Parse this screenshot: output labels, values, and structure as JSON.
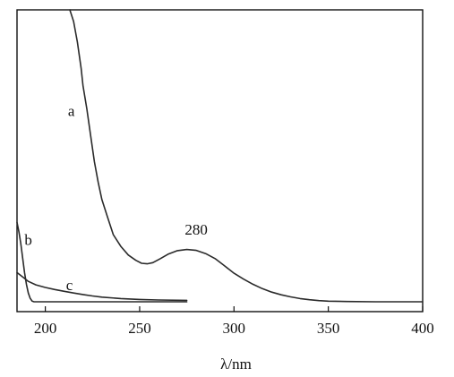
{
  "chart_data": {
    "type": "line",
    "title": "",
    "xlabel": "λ/nm",
    "ylabel": "",
    "xlim": [
      185,
      400
    ],
    "ylim": [
      0,
      1
    ],
    "x_ticks": [
      200,
      250,
      300,
      350,
      400
    ],
    "grid": false,
    "legend": "none",
    "series": [
      {
        "label": "a",
        "label_at": [
          212,
          0.637
        ],
        "points": [
          [
            213,
            1.0
          ],
          [
            215,
            0.96
          ],
          [
            217,
            0.89
          ],
          [
            219,
            0.8
          ],
          [
            220,
            0.74
          ],
          [
            222,
            0.66
          ],
          [
            224,
            0.57
          ],
          [
            226,
            0.48
          ],
          [
            228,
            0.41
          ],
          [
            230,
            0.35
          ],
          [
            233,
            0.29
          ],
          [
            236,
            0.23
          ],
          [
            240,
            0.19
          ],
          [
            244,
            0.16
          ],
          [
            248,
            0.142
          ],
          [
            251,
            0.132
          ],
          [
            254,
            0.13
          ],
          [
            257,
            0.134
          ],
          [
            261,
            0.148
          ],
          [
            265,
            0.163
          ],
          [
            270,
            0.175
          ],
          [
            275,
            0.179
          ],
          [
            280,
            0.176
          ],
          [
            285,
            0.165
          ],
          [
            290,
            0.148
          ],
          [
            295,
            0.123
          ],
          [
            300,
            0.098
          ],
          [
            305,
            0.078
          ],
          [
            310,
            0.06
          ],
          [
            315,
            0.045
          ],
          [
            320,
            0.033
          ],
          [
            325,
            0.024
          ],
          [
            330,
            0.017
          ],
          [
            335,
            0.011
          ],
          [
            340,
            0.007
          ],
          [
            345,
            0.004
          ],
          [
            350,
            0.002
          ],
          [
            360,
            0.001
          ],
          [
            375,
            0.0
          ],
          [
            400,
            0.0
          ]
        ]
      },
      {
        "label": "b",
        "label_at": [
          189,
          0.195
        ],
        "points": [
          [
            185,
            0.272
          ],
          [
            186,
            0.24
          ],
          [
            187,
            0.2
          ],
          [
            188,
            0.15
          ],
          [
            189,
            0.1
          ],
          [
            190,
            0.06
          ],
          [
            191,
            0.03
          ],
          [
            192,
            0.012
          ],
          [
            193,
            0.002
          ],
          [
            194,
            0.0
          ],
          [
            275,
            0.0
          ]
        ]
      },
      {
        "label": "c",
        "label_at": [
          211,
          0.04
        ],
        "points": [
          [
            185,
            0.1
          ],
          [
            188,
            0.085
          ],
          [
            191,
            0.07
          ],
          [
            195,
            0.058
          ],
          [
            200,
            0.049
          ],
          [
            205,
            0.042
          ],
          [
            210,
            0.036
          ],
          [
            215,
            0.03
          ],
          [
            220,
            0.025
          ],
          [
            225,
            0.02
          ],
          [
            230,
            0.016
          ],
          [
            240,
            0.011
          ],
          [
            250,
            0.008
          ],
          [
            260,
            0.006
          ],
          [
            275,
            0.005
          ]
        ]
      }
    ],
    "annotations": [
      {
        "text": "280",
        "x": 280,
        "y": 0.23
      }
    ]
  }
}
